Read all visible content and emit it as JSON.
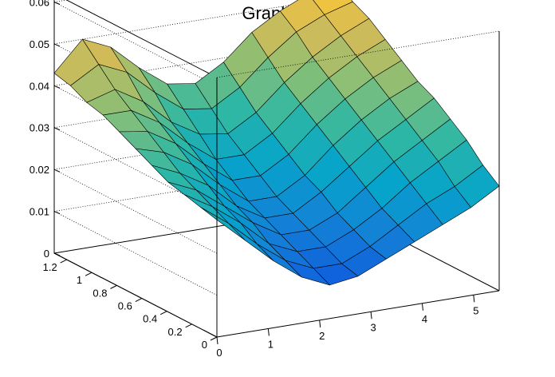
{
  "chart_data": {
    "type": "surface",
    "title": "Graph2D",
    "xlabel": "",
    "ylabel": "",
    "zlabel": "",
    "xlim": [
      0,
      5.5
    ],
    "ylim": [
      0,
      1.3
    ],
    "zlim": [
      0,
      0.062
    ],
    "x_ticks": [
      "0",
      "1",
      "2",
      "3",
      "4",
      "5"
    ],
    "y_ticks": [
      "0",
      "0.2",
      "0.4",
      "0.6",
      "0.8",
      "1",
      "1.2"
    ],
    "z_ticks": [
      "0",
      "0.01",
      "0.02",
      "0.03",
      "0.04",
      "0.05",
      "0.06"
    ],
    "grid": true,
    "palette": [
      "#352a87",
      "#0f5cdd",
      "#1481d6",
      "#06a4ca",
      "#2eb7a4",
      "#87bf77",
      "#d1bb59",
      "#fec832",
      "#f9fb0e"
    ],
    "surface": {
      "x": [
        0,
        0.55,
        1.1,
        1.65,
        2.2,
        2.75,
        3.3,
        3.85,
        4.4,
        4.95,
        5.5
      ],
      "y": [
        0,
        0.13,
        0.26,
        0.39,
        0.52,
        0.65,
        0.78,
        0.91,
        1.04,
        1.17,
        1.3
      ],
      "z": [
        [
          0.028,
          0.022,
          0.016,
          0.011,
          0.008,
          0.009,
          0.012,
          0.015,
          0.018,
          0.021,
          0.025
        ],
        [
          0.029,
          0.024,
          0.018,
          0.013,
          0.01,
          0.01,
          0.013,
          0.017,
          0.021,
          0.024,
          0.028
        ],
        [
          0.03,
          0.026,
          0.021,
          0.015,
          0.012,
          0.012,
          0.015,
          0.019,
          0.024,
          0.028,
          0.032
        ],
        [
          0.031,
          0.028,
          0.023,
          0.018,
          0.014,
          0.014,
          0.017,
          0.022,
          0.027,
          0.031,
          0.035
        ],
        [
          0.033,
          0.03,
          0.026,
          0.02,
          0.016,
          0.016,
          0.02,
          0.025,
          0.03,
          0.034,
          0.038
        ],
        [
          0.035,
          0.033,
          0.029,
          0.023,
          0.018,
          0.018,
          0.022,
          0.028,
          0.033,
          0.037,
          0.04
        ],
        [
          0.037,
          0.036,
          0.032,
          0.026,
          0.021,
          0.021,
          0.025,
          0.031,
          0.036,
          0.04,
          0.043
        ],
        [
          0.039,
          0.039,
          0.035,
          0.029,
          0.024,
          0.024,
          0.028,
          0.034,
          0.039,
          0.043,
          0.046
        ],
        [
          0.04,
          0.042,
          0.038,
          0.032,
          0.028,
          0.027,
          0.031,
          0.037,
          0.042,
          0.046,
          0.049
        ],
        [
          0.042,
          0.046,
          0.043,
          0.037,
          0.032,
          0.031,
          0.035,
          0.041,
          0.046,
          0.049,
          0.051
        ],
        [
          0.043,
          0.05,
          0.047,
          0.041,
          0.036,
          0.035,
          0.039,
          0.045,
          0.049,
          0.052,
          0.054
        ]
      ]
    }
  }
}
